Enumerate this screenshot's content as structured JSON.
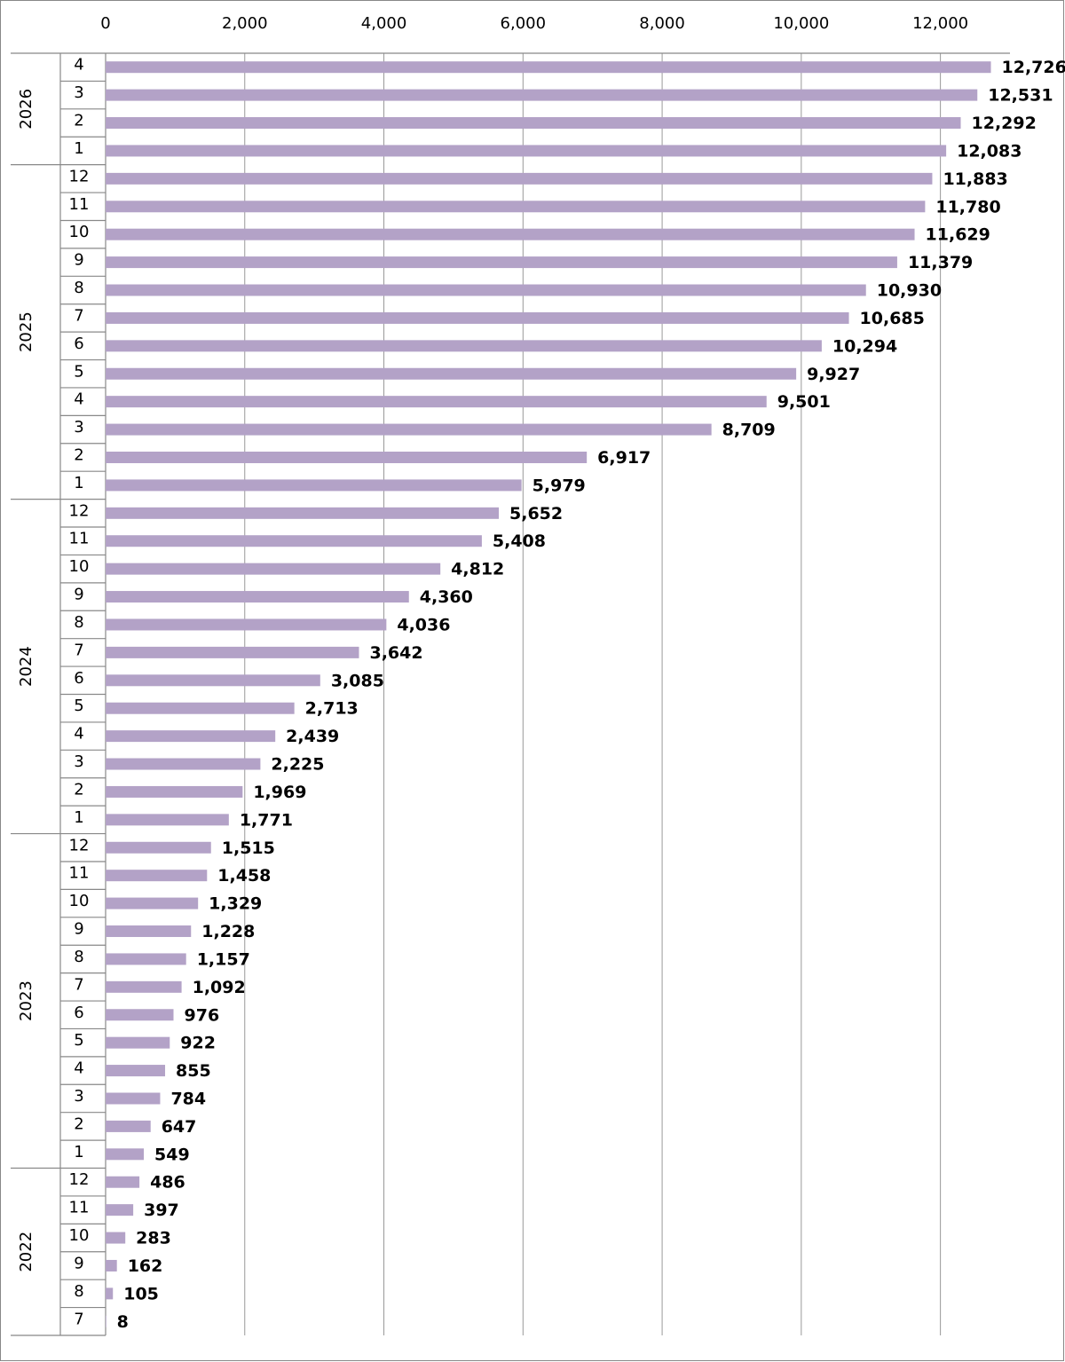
{
  "chart_data": {
    "type": "bar",
    "orientation": "horizontal",
    "color": "#b3a2c7",
    "grid": true,
    "xlim": [
      0,
      13000
    ],
    "xticks": [
      0,
      {
        "value": 2000,
        "label": "2,000"
      },
      {
        "value": 4000,
        "label": "4,000"
      },
      {
        "value": 6000,
        "label": "6,000"
      },
      {
        "value": 8000,
        "label": "8,000"
      },
      {
        "value": 10000,
        "label": "10,000"
      },
      {
        "value": 12000,
        "label": "12,000"
      }
    ],
    "groups": [
      {
        "label": "2026",
        "categories": [
          "4",
          "3",
          "2",
          "1"
        ],
        "values": [
          12726,
          12531,
          12292,
          12083
        ],
        "value_labels": [
          "12,726",
          "12,531",
          "12,292",
          "12,083"
        ]
      },
      {
        "label": "2025",
        "categories": [
          "12",
          "11",
          "10",
          "9",
          "8",
          "7",
          "6",
          "5",
          "4",
          "3",
          "2",
          "1"
        ],
        "values": [
          11883,
          11780,
          11629,
          11379,
          10930,
          10685,
          10294,
          9927,
          9501,
          8709,
          6917,
          5979
        ],
        "value_labels": [
          "11,883",
          "11,780",
          "11,629",
          "11,379",
          "10,930",
          "10,685",
          "10,294",
          "9,927",
          "9,501",
          "8,709",
          "6,917",
          "5,979"
        ]
      },
      {
        "label": "2024",
        "categories": [
          "12",
          "11",
          "10",
          "9",
          "8",
          "7",
          "6",
          "5",
          "4",
          "3",
          "2",
          "1"
        ],
        "values": [
          5652,
          5408,
          4812,
          4360,
          4036,
          3642,
          3085,
          2713,
          2439,
          2225,
          1969,
          1771
        ],
        "value_labels": [
          "5,652",
          "5,408",
          "4,812",
          "4,360",
          "4,036",
          "3,642",
          "3,085",
          "2,713",
          "2,439",
          "2,225",
          "1,969",
          "1,771"
        ]
      },
      {
        "label": "2023",
        "categories": [
          "12",
          "11",
          "10",
          "9",
          "8",
          "7",
          "6",
          "5",
          "4",
          "3",
          "2",
          "1"
        ],
        "values": [
          1515,
          1458,
          1329,
          1228,
          1157,
          1092,
          976,
          922,
          855,
          784,
          647,
          549
        ],
        "value_labels": [
          "1,515",
          "1,458",
          "1,329",
          "1,228",
          "1,157",
          "1,092",
          "976",
          "922",
          "855",
          "784",
          "647",
          "549"
        ]
      },
      {
        "label": "2022",
        "categories": [
          "12",
          "11",
          "10",
          "9",
          "8",
          "7"
        ],
        "values": [
          486,
          397,
          283,
          162,
          105,
          8
        ]
      }
    ]
  }
}
